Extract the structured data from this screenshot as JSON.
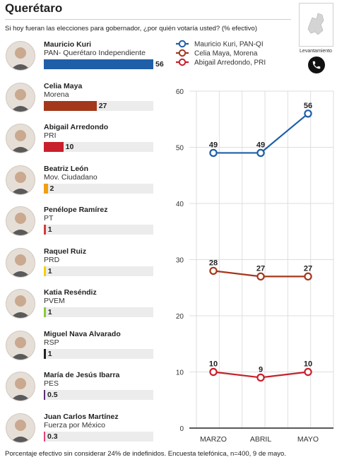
{
  "header": {
    "title": "Querétaro",
    "question": "Si hoy fueran las elecciones para gobernador, ¿por quién votaría usted? (% efectivo)",
    "method_label": "Levantamiento"
  },
  "candidates": [
    {
      "name": "Mauricio Kuri",
      "party": "PAN- Querétaro Independiente",
      "value": 56,
      "value_label": "56",
      "color": "#1f5fa8"
    },
    {
      "name": "Celia Maya",
      "party": "Morena",
      "value": 27,
      "value_label": "27",
      "color": "#a3381d"
    },
    {
      "name": "Abigail Arredondo",
      "party": "PRI",
      "value": 10,
      "value_label": "10",
      "color": "#c8202c"
    },
    {
      "name": "Beatriz León",
      "party": "Mov. Ciudadano",
      "value": 2,
      "value_label": "2",
      "color": "#f0a010"
    },
    {
      "name": "Penélope Ramírez",
      "party": "PT",
      "value": 1,
      "value_label": "1",
      "color": "#d83a3a"
    },
    {
      "name": "Raquel Ruiz",
      "party": "PRD",
      "value": 1,
      "value_label": "1",
      "color": "#f4d000"
    },
    {
      "name": "Katia Reséndiz",
      "party": "PVEM",
      "value": 1,
      "value_label": "1",
      "color": "#8cc63f"
    },
    {
      "name": "Miguel Nava Alvarado",
      "party": "RSP",
      "value": 1,
      "value_label": "1",
      "color": "#222222"
    },
    {
      "name": "María de Jesús Ibarra",
      "party": "PES",
      "value": 0.5,
      "value_label": "0.5",
      "color": "#5b2d7a"
    },
    {
      "name": "Juan Carlos Martínez",
      "party": "Fuerza por México",
      "value": 0.3,
      "value_label": "0.3",
      "color": "#e0457b"
    }
  ],
  "chart_data": [
    {
      "type": "bar",
      "orientation": "horizontal",
      "categories": [
        "Mauricio Kuri",
        "Celia Maya",
        "Abigail Arredondo",
        "Beatriz León",
        "Penélope Ramírez",
        "Raquel Ruiz",
        "Katia Reséndiz",
        "Miguel Nava Alvarado",
        "María de Jesús Ibarra",
        "Juan Carlos Martínez"
      ],
      "values": [
        56,
        27,
        10,
        2,
        1,
        1,
        1,
        1,
        0.5,
        0.3
      ],
      "xlim": [
        0,
        56
      ]
    },
    {
      "type": "line",
      "categories": [
        "MARZO",
        "ABRIL",
        "MAYO"
      ],
      "ylim": [
        0,
        60
      ],
      "yticks": [
        0,
        10,
        20,
        30,
        40,
        50,
        60
      ],
      "grid": true,
      "legend_position": "top",
      "series": [
        {
          "name": "Mauricio Kuri, PAN-QI",
          "values": [
            49,
            49,
            56
          ],
          "color": "#1f5fa8"
        },
        {
          "name": "Celia Maya, Morena",
          "values": [
            28,
            27,
            27
          ],
          "color": "#a3381d"
        },
        {
          "name": "Abigail Arredondo, PRI",
          "values": [
            10,
            9,
            10
          ],
          "color": "#c8202c"
        }
      ]
    }
  ],
  "footnote": "Porcentaje efectivo sin considerar 24% de indefinidos. Encuesta telefónica, n=400, 9 de mayo."
}
